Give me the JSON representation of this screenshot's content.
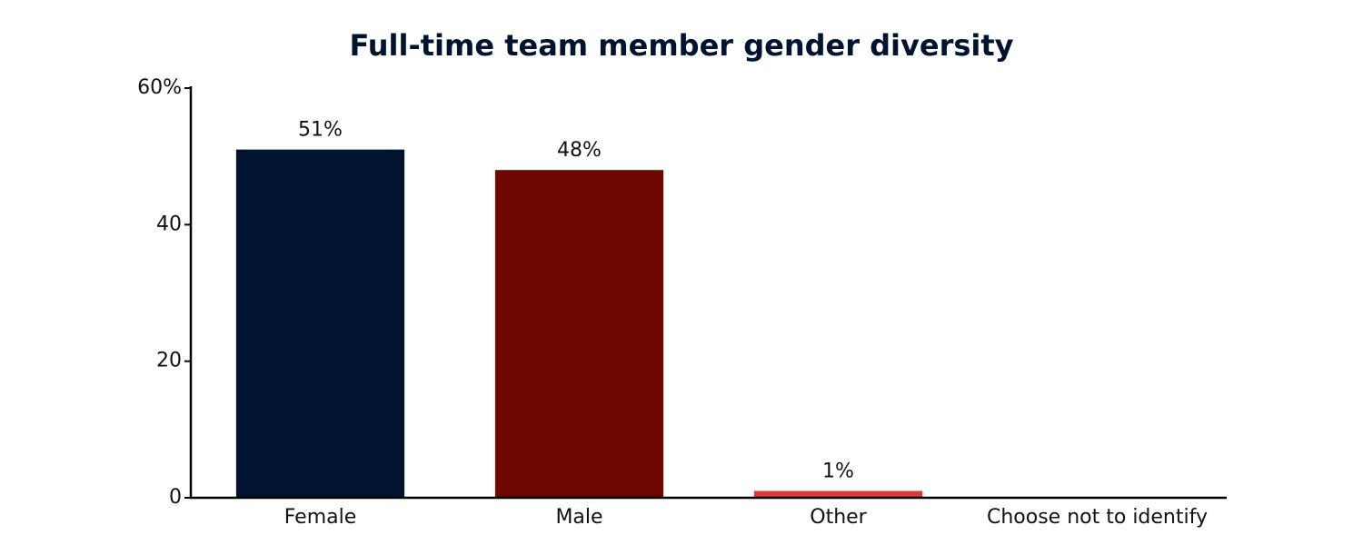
{
  "chart_data": {
    "type": "bar",
    "title": "Full-time team member gender diversity",
    "categories": [
      "Female",
      "Male",
      "Other",
      "Choose not to identify"
    ],
    "values": [
      51,
      48,
      1,
      0
    ],
    "value_labels": [
      "51%",
      "48%",
      "1%",
      null
    ],
    "colors": [
      "#00142f",
      "#6e0700",
      "#d93a3a"
    ],
    "ylim": [
      0,
      60
    ],
    "yticks": [
      0,
      20,
      40,
      {
        "value": 60,
        "label": "60%"
      }
    ],
    "grid": false
  }
}
